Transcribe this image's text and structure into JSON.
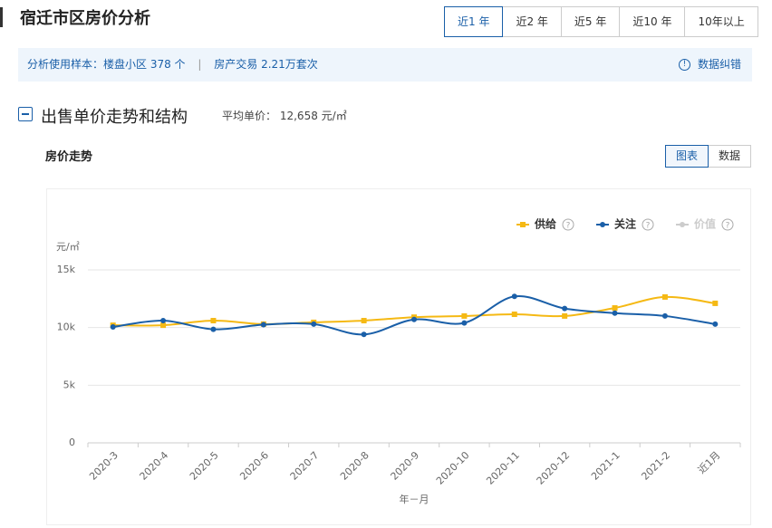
{
  "header": {
    "title": "宿迁市区房价分析",
    "ranges": [
      "近1 年",
      "近2 年",
      "近5 年",
      "近10 年",
      "10年以上"
    ],
    "selected": 0
  },
  "summary": {
    "label": "分析使用样本：",
    "communities": "楼盘小区 378 个",
    "separator": "|",
    "transactions": "房产交易 2.21万套次",
    "feedback": "数据纠错"
  },
  "section": {
    "title": "出售单价走势和结构",
    "avg_label": "平均单价：",
    "avg_value": "12,658 元/㎡"
  },
  "panel": {
    "title": "房价走势",
    "views": [
      "图表",
      "数据"
    ],
    "selected": 0
  },
  "chart_data": {
    "type": "line",
    "y_label": "元/㎡",
    "x_label": "年－月",
    "categories": [
      "2020-3",
      "2020-4",
      "2020-5",
      "2020-6",
      "2020-7",
      "2020-8",
      "2020-9",
      "2020-10",
      "2020-11",
      "2020-12",
      "2021-1",
      "2021-2",
      "近1月"
    ],
    "series": [
      {
        "name": "供给",
        "color": "#f5b914",
        "marker": "square",
        "values": [
          10200,
          10200,
          10600,
          10300,
          10450,
          10600,
          10900,
          11000,
          11150,
          11000,
          11700,
          12650,
          12100
        ]
      },
      {
        "name": "关注",
        "color": "#1a5fa8",
        "marker": "circle",
        "values": [
          10050,
          10600,
          9850,
          10250,
          10300,
          9400,
          10700,
          10400,
          12700,
          11650,
          11250,
          11000,
          10300
        ]
      },
      {
        "name": "价值",
        "color": "#cccccc",
        "marker": "circle",
        "hidden": true,
        "values": [
          null,
          null,
          null,
          null,
          null,
          null,
          null,
          null,
          null,
          null,
          null,
          null,
          null
        ]
      }
    ],
    "ylim": [
      0,
      15000
    ],
    "yticks": [
      0,
      {
        "value": 5000,
        "label": "5k"
      },
      {
        "value": 10000,
        "label": "10k"
      },
      {
        "value": 15000,
        "label": "15k"
      }
    ],
    "grid": true,
    "legend": "top-right"
  }
}
